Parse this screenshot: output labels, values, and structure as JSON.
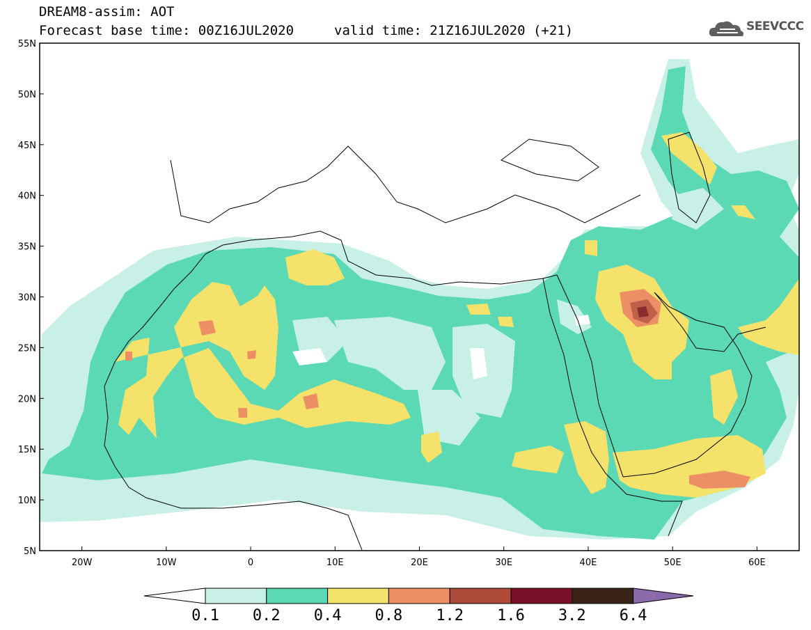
{
  "header": {
    "title": "DREAM8-assim: AOT",
    "base_time": "Forecast base time: 00Z16JUL2020",
    "valid_time": "valid time: 21Z16JUL2020 (+21)"
  },
  "logo": {
    "text": "SEEVCCC",
    "icon": "cloud-icon"
  },
  "axes": {
    "lat_labels": [
      "55N",
      "50N",
      "45N",
      "40N",
      "35N",
      "30N",
      "25N",
      "20N",
      "15N",
      "10N",
      "5N"
    ],
    "lon_labels": [
      "20W",
      "10W",
      "0",
      "10E",
      "20E",
      "30E",
      "40E",
      "50E",
      "60E"
    ]
  },
  "colorbar": {
    "labels": [
      "0.1",
      "0.2",
      "0.4",
      "0.8",
      "1.2",
      "1.6",
      "3.2",
      "6.4"
    ],
    "colors": [
      "#ffffff",
      "#c8f0e6",
      "#5ad9b4",
      "#f5e26b",
      "#ec8f64",
      "#ae4b3a",
      "#7a0f2c",
      "#3a2418",
      "#8a6aa8"
    ]
  },
  "palette": {
    "lt": "#c8f0e6",
    "gr": "#5ad9b4",
    "ye": "#f5e26b",
    "or": "#ec8f64",
    "rd": "#c1604a",
    "dk": "#8a2d2d"
  }
}
